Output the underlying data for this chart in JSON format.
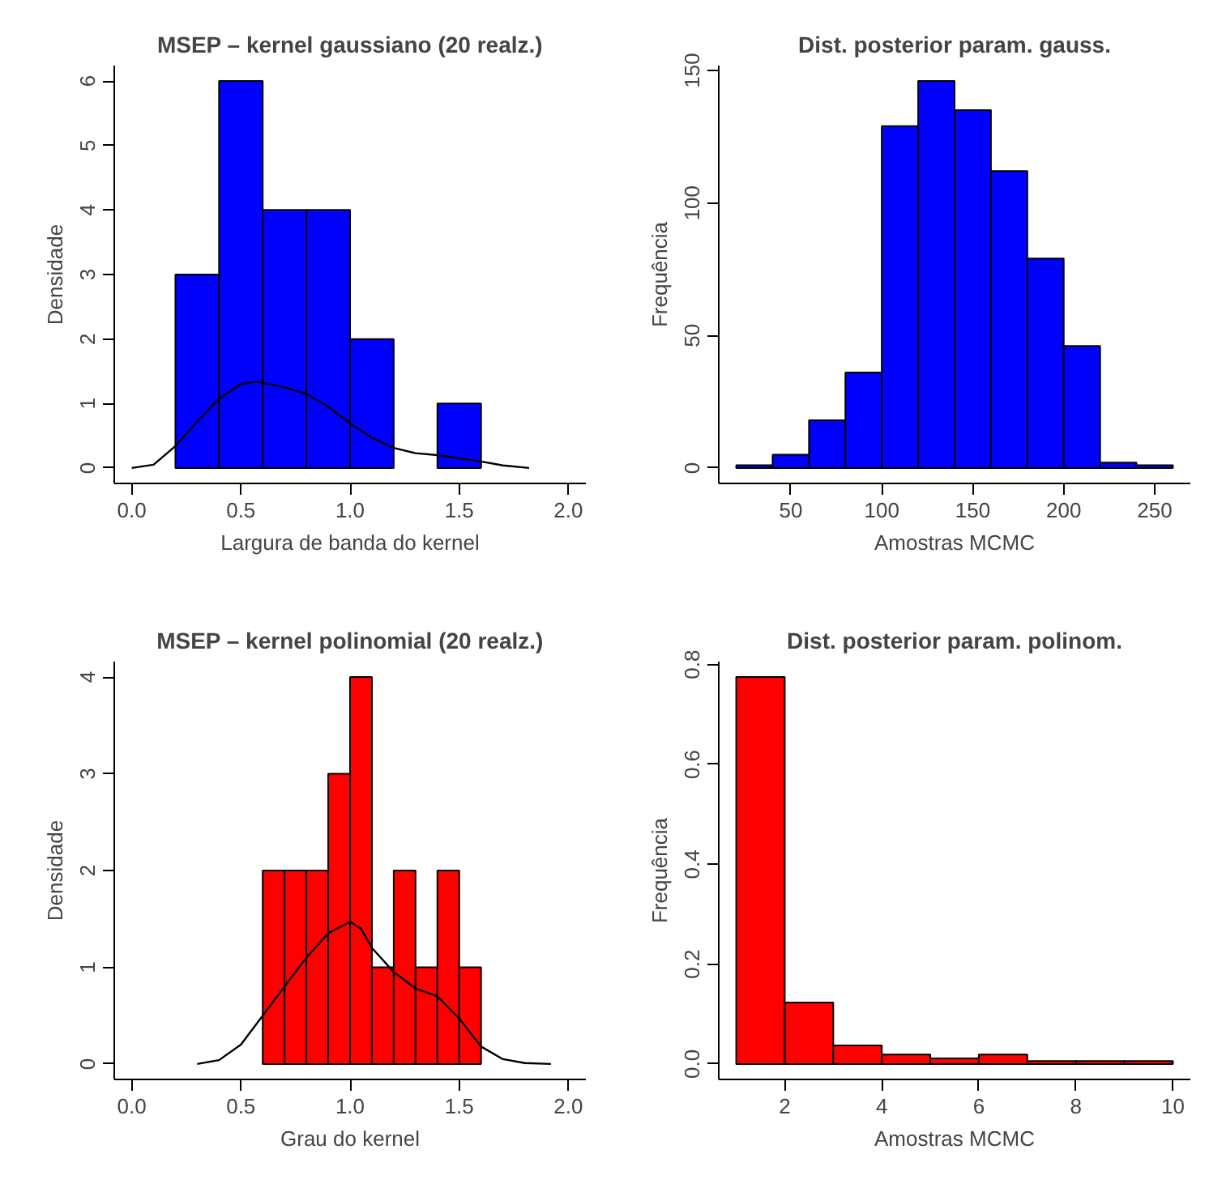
{
  "chart_data": [
    {
      "type": "histogram",
      "title": "MSEP – kernel gaussiano (20 realz.)",
      "xlabel": "Largura de banda do kernel",
      "ylabel": "Densidade",
      "bins": [
        0.2,
        0.4,
        0.6,
        0.8,
        1.0,
        1.2,
        1.4,
        1.6
      ],
      "values": [
        3,
        6,
        4,
        4,
        2,
        0,
        1
      ],
      "color": "#0000ff",
      "xlim": [
        -0.08,
        2.08
      ],
      "ylim": [
        -0.24,
        6.24
      ],
      "xticks": [
        {
          "value": 0,
          "label": "0.0"
        },
        0.5,
        {
          "value": 1,
          "label": "1.0"
        },
        1.5,
        {
          "value": 2,
          "label": "2.0"
        }
      ],
      "yticks": [
        0,
        1,
        2,
        3,
        4,
        5,
        6
      ],
      "grid": false,
      "series": [
        {
          "type": "line",
          "color": "#000000",
          "x": [
            0.0,
            0.1,
            0.2,
            0.3,
            0.4,
            0.5,
            0.57,
            0.7,
            0.8,
            0.9,
            1.0,
            1.1,
            1.2,
            1.3,
            1.4,
            1.5,
            1.6,
            1.7,
            1.82
          ],
          "values": [
            0.0,
            0.05,
            0.34,
            0.72,
            1.08,
            1.3,
            1.34,
            1.25,
            1.15,
            0.95,
            0.69,
            0.47,
            0.31,
            0.23,
            0.2,
            0.15,
            0.1,
            0.04,
            0.0
          ]
        }
      ]
    },
    {
      "type": "histogram",
      "title": "Dist. posterior param. gauss.",
      "xlabel": "Amostras MCMC",
      "ylabel": "Frequência",
      "bins": [
        20,
        40,
        60,
        80,
        100,
        120,
        140,
        160,
        180,
        200,
        220,
        240,
        260
      ],
      "values": [
        1,
        5,
        18,
        36,
        129,
        146,
        135,
        112,
        79,
        46,
        2,
        1
      ],
      "color": "#0000ff",
      "xlim": [
        10.4,
        269.6
      ],
      "ylim": [
        -5.84,
        151.84
      ],
      "xticks": [
        50,
        100,
        150,
        200,
        250
      ],
      "yticks": [
        0,
        50,
        100,
        150
      ],
      "grid": false
    },
    {
      "type": "histogram",
      "title": "MSEP – kernel polinomial (20 realz.)",
      "xlabel": "Grau do kernel",
      "ylabel": "Densidade",
      "bins": [
        0.6,
        0.7,
        0.8,
        0.9,
        1.0,
        1.1,
        1.2,
        1.3,
        1.4,
        1.5,
        1.6
      ],
      "values": [
        2,
        2,
        2,
        3,
        4,
        1,
        2,
        1,
        2,
        1
      ],
      "color": "#ff0000",
      "xlim": [
        -0.08,
        2.08
      ],
      "ylim": [
        -0.16,
        4.16
      ],
      "xticks": [
        {
          "value": 0,
          "label": "0.0"
        },
        0.5,
        {
          "value": 1,
          "label": "1.0"
        },
        1.5,
        {
          "value": 2,
          "label": "2.0"
        }
      ],
      "yticks": [
        0,
        1,
        2,
        3,
        4
      ],
      "grid": false,
      "series": [
        {
          "type": "line",
          "color": "#000000",
          "x": [
            0.3,
            0.4,
            0.5,
            0.6,
            0.7,
            0.8,
            0.9,
            1.0,
            1.05,
            1.1,
            1.2,
            1.3,
            1.4,
            1.5,
            1.6,
            1.7,
            1.8,
            1.92
          ],
          "values": [
            0.0,
            0.04,
            0.2,
            0.5,
            0.8,
            1.1,
            1.35,
            1.47,
            1.4,
            1.2,
            0.95,
            0.78,
            0.7,
            0.47,
            0.18,
            0.05,
            0.01,
            0.0
          ]
        }
      ]
    },
    {
      "type": "histogram",
      "title": "Dist. posterior param. polinom.",
      "xlabel": "Amostras MCMC",
      "ylabel": "Frequência",
      "bins": [
        1,
        2,
        3,
        4,
        5,
        6,
        7,
        8,
        9,
        10
      ],
      "values": [
        0.775,
        0.123,
        0.037,
        0.019,
        0.011,
        0.019,
        0.006,
        0.006,
        0.006
      ],
      "color": "#ff0000",
      "xlim": [
        0.64,
        10.36
      ],
      "ylim": [
        -0.031,
        0.806
      ],
      "xticks": [
        2,
        4,
        6,
        8,
        10
      ],
      "yticks": [
        {
          "value": 0,
          "label": "0.0"
        },
        0.2,
        0.4,
        0.6,
        0.8
      ],
      "grid": false
    }
  ]
}
